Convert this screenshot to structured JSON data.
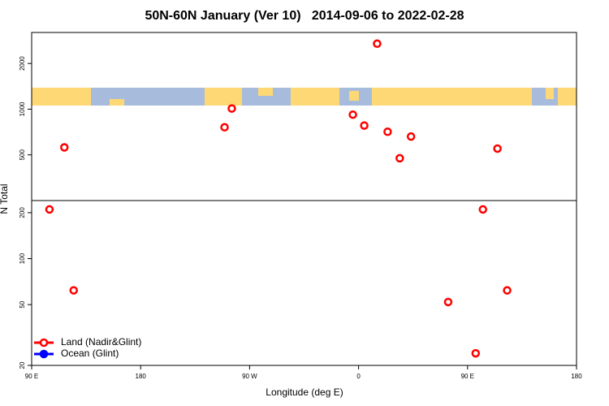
{
  "chart_data": {
    "type": "scatter",
    "title": "50N-60N January (Ver 10)   2014-09-06 to 2022-02-28",
    "x_label": "Longitude (deg E)",
    "y_label": "N Total",
    "xlim": [
      -270,
      180
    ],
    "xticks": [
      {
        "value": -270,
        "label": "90 E"
      },
      {
        "value": -180,
        "label": "180"
      },
      {
        "value": -90,
        "label": "90 W"
      },
      0,
      {
        "value": 90,
        "label": "90 E"
      },
      180
    ],
    "ylog": true,
    "panels": [
      {
        "ylim": [
          250,
          3200
        ],
        "yticks": [
          500,
          1000,
          2000
        ]
      },
      {
        "ylim": [
          20,
          240
        ],
        "yticks": [
          20,
          50,
          100,
          200
        ]
      }
    ],
    "legend": "lower left",
    "series": [
      {
        "name": "Land (Nadir&Glint)",
        "color": "#ff0000",
        "x": [
          15.3,
          -243,
          -110.7,
          -104.7,
          -4.7,
          4.7,
          24,
          43.3,
          34,
          114.7,
          -255.3,
          -235.3,
          74,
          96.7,
          102.7,
          122.7
        ],
        "values": [
          2700,
          560,
          760,
          1010,
          920,
          780,
          710,
          660,
          475,
          550,
          210,
          62,
          52,
          24,
          210,
          62
        ]
      },
      {
        "name": "Ocean (Glint)",
        "color": "#0000ff",
        "x": [],
        "values": []
      }
    ]
  }
}
